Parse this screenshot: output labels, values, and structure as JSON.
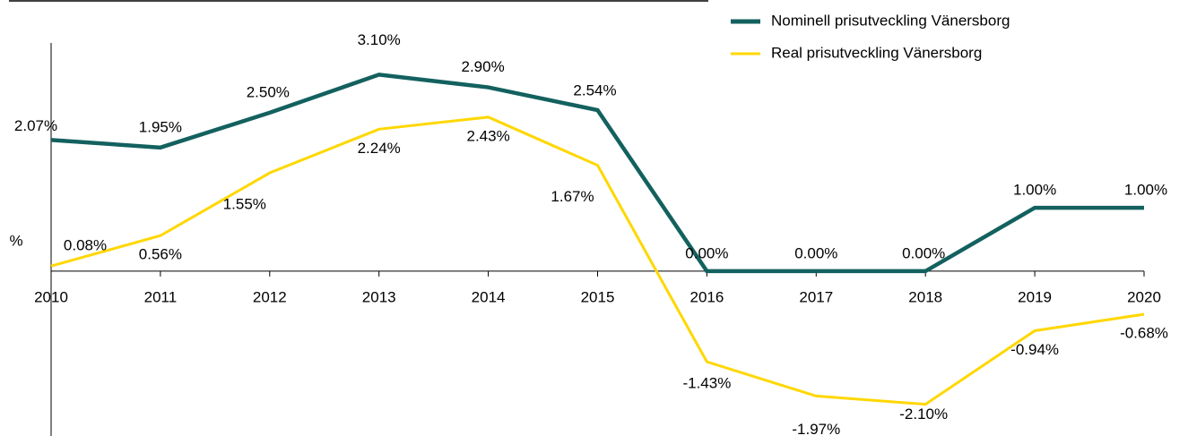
{
  "chart_data": {
    "type": "line",
    "categories": [
      "2010",
      "2011",
      "2012",
      "2013",
      "2014",
      "2015",
      "2016",
      "2017",
      "2018",
      "2019",
      "2020"
    ],
    "y_label": "%",
    "ylim": [
      -2.6,
      3.6
    ],
    "legend": "top-right",
    "series": [
      {
        "name": "Nominell prisutveckling Vänersborg",
        "color": "#13615f",
        "values": [
          2.07,
          1.95,
          2.5,
          3.1,
          2.9,
          2.54,
          0.0,
          0.0,
          0.0,
          1.0,
          1.0
        ],
        "value_labels": [
          "2.07%",
          "1.95%",
          "2.50%",
          "3.10%",
          "2.90%",
          "2.54%",
          "0.00%",
          "0.00%",
          "0.00%",
          "1.00%",
          "1.00%"
        ]
      },
      {
        "name": "Real prisutveckling Vänersborg",
        "color": "#ffd700",
        "values": [
          0.08,
          0.56,
          1.55,
          2.24,
          2.43,
          1.67,
          -1.43,
          -1.97,
          -2.1,
          -0.94,
          -0.68
        ],
        "value_labels": [
          "0.08%",
          "0.56%",
          "1.55%",
          "2.24%",
          "2.43%",
          "1.67%",
          "-1.43%",
          "-1.97%",
          "-2.10%",
          "-0.94%",
          "-0.68%"
        ]
      }
    ]
  }
}
